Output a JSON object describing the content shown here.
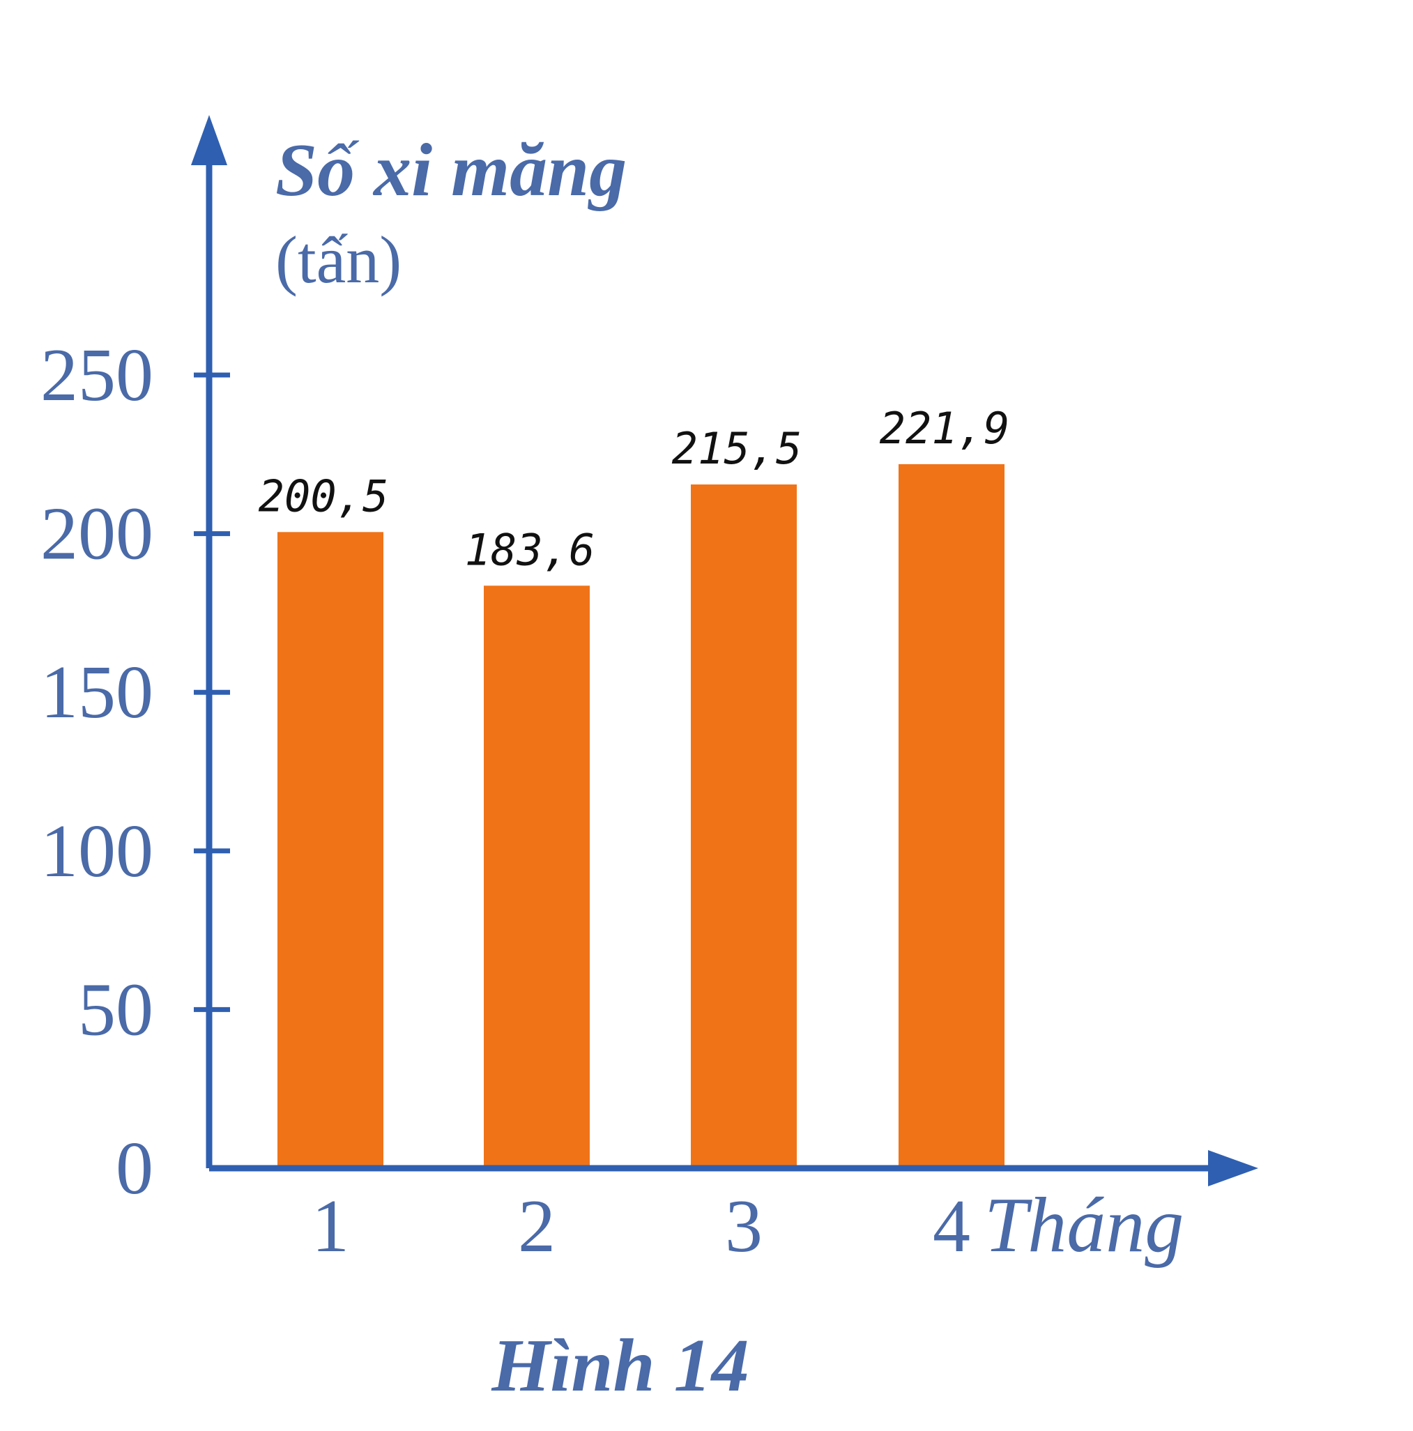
{
  "chart_data": {
    "type": "bar",
    "ylabel": "Số xi măng",
    "yunit": "(tấn)",
    "xlabel": "Tháng",
    "caption": "Hình 14",
    "categories": [
      "1",
      "2",
      "3",
      "4"
    ],
    "values": [
      200.5,
      183.6,
      215.5,
      221.9
    ],
    "data_labels": [
      "200,5",
      "183,6",
      "215,5",
      "221,9"
    ],
    "yticks": [
      0,
      50,
      100,
      150,
      200,
      250
    ],
    "ylim": [
      0,
      250
    ],
    "grid": false,
    "bar_color": "#f07318",
    "axis_color": "#2f5fb0",
    "text_color": "#4a6aa8"
  }
}
